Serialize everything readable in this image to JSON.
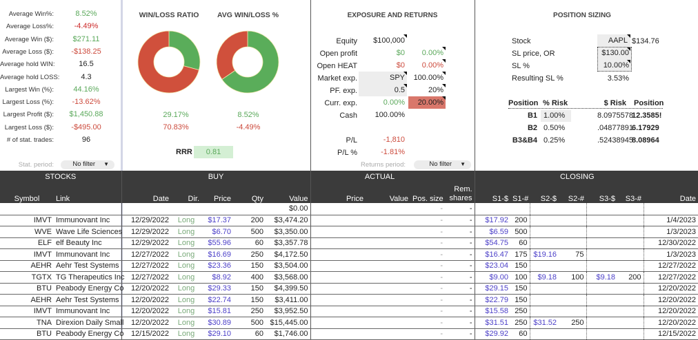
{
  "stats": [
    {
      "label": "Average Win%:",
      "value": "8.52%",
      "tone": "g"
    },
    {
      "label": "Average Loss%:",
      "value": "-4.49%",
      "tone": "rb"
    },
    {
      "label": "Average Win ($):",
      "value": "$271.11",
      "tone": "g"
    },
    {
      "label": "Average Loss ($):",
      "value": "-$138.25",
      "tone": "r"
    },
    {
      "label": "Average hold WIN:",
      "value": "16.5",
      "tone": ""
    },
    {
      "label": "Average hold LOSS:",
      "value": "4.3",
      "tone": ""
    },
    {
      "label": "Largest Win (%):",
      "value": "44.16%",
      "tone": "g"
    },
    {
      "label": "Largest Loss (%):",
      "value": "-13.62%",
      "tone": "r"
    },
    {
      "label": "Largest Profit ($):",
      "value": "$1,450.88",
      "tone": "g"
    },
    {
      "label": "Largest Loss ($):",
      "value": "-$495.00",
      "tone": "r"
    },
    {
      "label": "# of stat. trades:",
      "value": "96",
      "tone": ""
    }
  ],
  "stat_period": {
    "label": "Stat. period:",
    "value": "No filter"
  },
  "charts": {
    "win_loss": {
      "title": "WIN/LOSS RATIO",
      "win": 29.17,
      "loss": 70.83,
      "win_label": "29.17%",
      "loss_label": "70.83%"
    },
    "avg_win_loss": {
      "title": "AVG WIN/LOSS %",
      "win": 8.52,
      "loss": 4.49,
      "win_label": "8.52%",
      "loss_label": "-4.49%"
    },
    "rrr_label": "RRR",
    "rrr_value": "0.81",
    "colors": {
      "win": "#5aad5a",
      "loss": "#d0503c"
    }
  },
  "exposure": {
    "title": "EXPOSURE AND RETURNS",
    "equity": {
      "label": "Equity",
      "value": "$100,000"
    },
    "open_profit": {
      "label": "Open profit",
      "value": "$0",
      "pct": "0.00%"
    },
    "open_heat": {
      "label": "Open HEAT",
      "value": "$0",
      "pct": "0.00%"
    },
    "market_exp": {
      "label": "Market exp.",
      "value": "SPY",
      "pct": "100.00%"
    },
    "pf_exp": {
      "label": "PF. exp.",
      "value": "0.5",
      "pct": "20%"
    },
    "curr_exp": {
      "label": "Curr. exp.",
      "value": "0.00%",
      "pct": "20.00%"
    },
    "cash": {
      "label": "Cash",
      "value": "100.00%"
    },
    "pl": {
      "label": "P/L",
      "value": "-1,810"
    },
    "pl_pct": {
      "label": "P/L %",
      "value": "-1.81%"
    },
    "returns_period": {
      "label": "Returns period:",
      "value": "No filter"
    }
  },
  "sizing": {
    "title": "POSITION SIZING",
    "stock": {
      "label": "Stock",
      "value": "AAPL",
      "price": "$134.76"
    },
    "sl_price": {
      "label": "SL price, OR",
      "value": "$130.00"
    },
    "sl_pct": {
      "label": "SL %",
      "value": "10.00%"
    },
    "result": {
      "label": "Resulting SL %",
      "value": "3.53%"
    },
    "headers": [
      "Position",
      "% Risk",
      "$ Risk",
      "Position"
    ],
    "rows": [
      {
        "name": "B1",
        "risk": "1.00%",
        "dollar": "8.0975578",
        "pos": "12.3585!"
      },
      {
        "name": "B2",
        "risk": "0.50%",
        "dollar": ".04877891",
        "pos": "6.17929"
      },
      {
        "name": "B3&B4",
        "risk": "0.25%",
        "dollar": ".52438945",
        "pos": "8.08964"
      }
    ]
  },
  "table": {
    "groups": [
      "STOCKS",
      "BUY",
      "ACTUAL",
      "CLOSING"
    ],
    "columns": [
      "Symbol",
      "Link",
      "Date",
      "Dir.",
      "Price",
      "Qty",
      "Value",
      "Price",
      "Value",
      "Pos. size",
      "Rem. shares",
      "S1-$",
      "S1-#",
      "S2-$",
      "S2-#",
      "S3-$",
      "S3-#",
      "Date"
    ],
    "first_row": {
      "value": "$0.00",
      "pos": "-",
      "rem": "-"
    },
    "rows": [
      [
        "IMVT",
        "Immunovant Inc",
        "12/29/2022",
        "Long",
        "$17.37",
        "200",
        "$3,474.20",
        "",
        "",
        "-",
        "-",
        "$17.92",
        "200",
        "",
        "",
        "",
        "",
        "1/4/2023"
      ],
      [
        "WVE",
        "Wave Life Sciences",
        "12/29/2022",
        "Long",
        "$6.70",
        "500",
        "$3,350.00",
        "",
        "",
        "-",
        "-",
        "$6.59",
        "500",
        "",
        "",
        "",
        "",
        "1/3/2023"
      ],
      [
        "ELF",
        "elf Beauty Inc",
        "12/29/2022",
        "Long",
        "$55.96",
        "60",
        "$3,357.78",
        "",
        "",
        "-",
        "-",
        "$54.75",
        "60",
        "",
        "",
        "",
        "",
        "12/30/2022"
      ],
      [
        "IMVT",
        "Immunovant Inc",
        "12/27/2022",
        "Long",
        "$16.69",
        "250",
        "$4,172.50",
        "",
        "",
        "-",
        "-",
        "$16.47",
        "175",
        "$19.16",
        "75",
        "",
        "",
        "1/3/2023"
      ],
      [
        "AEHR",
        "Aehr Test Systems",
        "12/27/2022",
        "Long",
        "$23.36",
        "150",
        "$3,504.00",
        "",
        "",
        "-",
        "-",
        "$23.04",
        "150",
        "",
        "",
        "",
        "",
        "12/27/2022"
      ],
      [
        "TGTX",
        "TG Therapeutics Inc",
        "12/27/2022",
        "Long",
        "$8.92",
        "400",
        "$3,568.00",
        "",
        "",
        "-",
        "-",
        "$9.00",
        "100",
        "$9.18",
        "100",
        "$9.18",
        "200",
        "12/27/2022"
      ],
      [
        "BTU",
        "Peabody Energy Co",
        "12/20/2022",
        "Long",
        "$29.33",
        "150",
        "$4,399.50",
        "",
        "",
        "-",
        "-",
        "$29.15",
        "150",
        "",
        "",
        "",
        "",
        "12/20/2022"
      ],
      [
        "AEHR",
        "Aehr Test Systems",
        "12/20/2022",
        "Long",
        "$22.74",
        "150",
        "$3,411.00",
        "",
        "",
        "-",
        "-",
        "$22.79",
        "150",
        "",
        "",
        "",
        "",
        "12/20/2022"
      ],
      [
        "IMVT",
        "Immunovant Inc",
        "12/20/2022",
        "Long",
        "$15.81",
        "250",
        "$3,952.50",
        "",
        "",
        "-",
        "-",
        "$15.58",
        "250",
        "",
        "",
        "",
        "",
        "12/20/2022"
      ],
      [
        "TNA",
        "Direxion Daily Small",
        "12/20/2022",
        "Long",
        "$30.89",
        "500",
        "$15,445.00",
        "",
        "",
        "-",
        "-",
        "$31.51",
        "250",
        "$31.52",
        "250",
        "",
        "",
        "12/20/2022"
      ],
      [
        "BTU",
        "Peabody Energy Co",
        "12/15/2022",
        "Long",
        "$29.10",
        "60",
        "$1,746.00",
        "",
        "",
        "-",
        "-",
        "$29.92",
        "60",
        "",
        "",
        "",
        "",
        "12/15/2022"
      ]
    ]
  }
}
